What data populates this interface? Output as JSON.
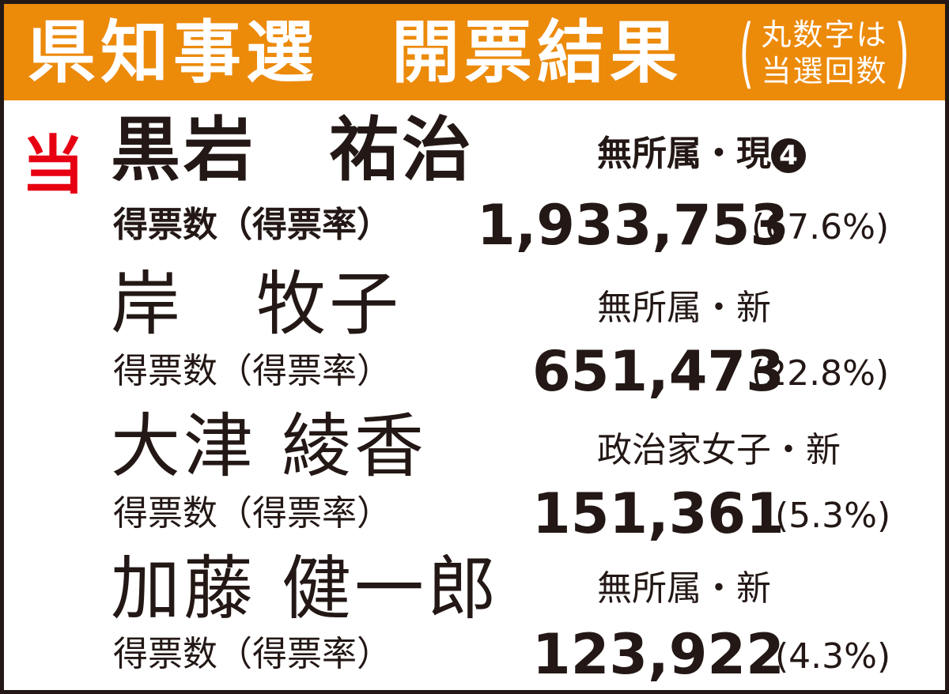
{
  "header": {
    "title": "県知事選　開票結果",
    "note_line1": "丸数字は",
    "note_line2": "当選回数",
    "background_color": "#ec8a0a"
  },
  "vote_label": "得票数（得票率）",
  "winner_mark": "当",
  "winner_mark_color": "#e60012",
  "candidates": [
    {
      "name": "黒岩　祐治",
      "party": "無所属・現",
      "terms": "4",
      "votes": "1,933,753",
      "rate": "(67.6%)",
      "elected": true
    },
    {
      "name": "岸　牧子",
      "party": "無所属・新",
      "votes": "651,473",
      "rate": "(22.8%)",
      "elected": false
    },
    {
      "name": "大津 綾香",
      "party": "政治家女子・新",
      "votes": "151,361",
      "rate": "(5.3%)",
      "elected": false
    },
    {
      "name": "加藤 健一郎",
      "party": "無所属・新",
      "votes": "123,922",
      "rate": "(4.3%)",
      "elected": false
    }
  ]
}
